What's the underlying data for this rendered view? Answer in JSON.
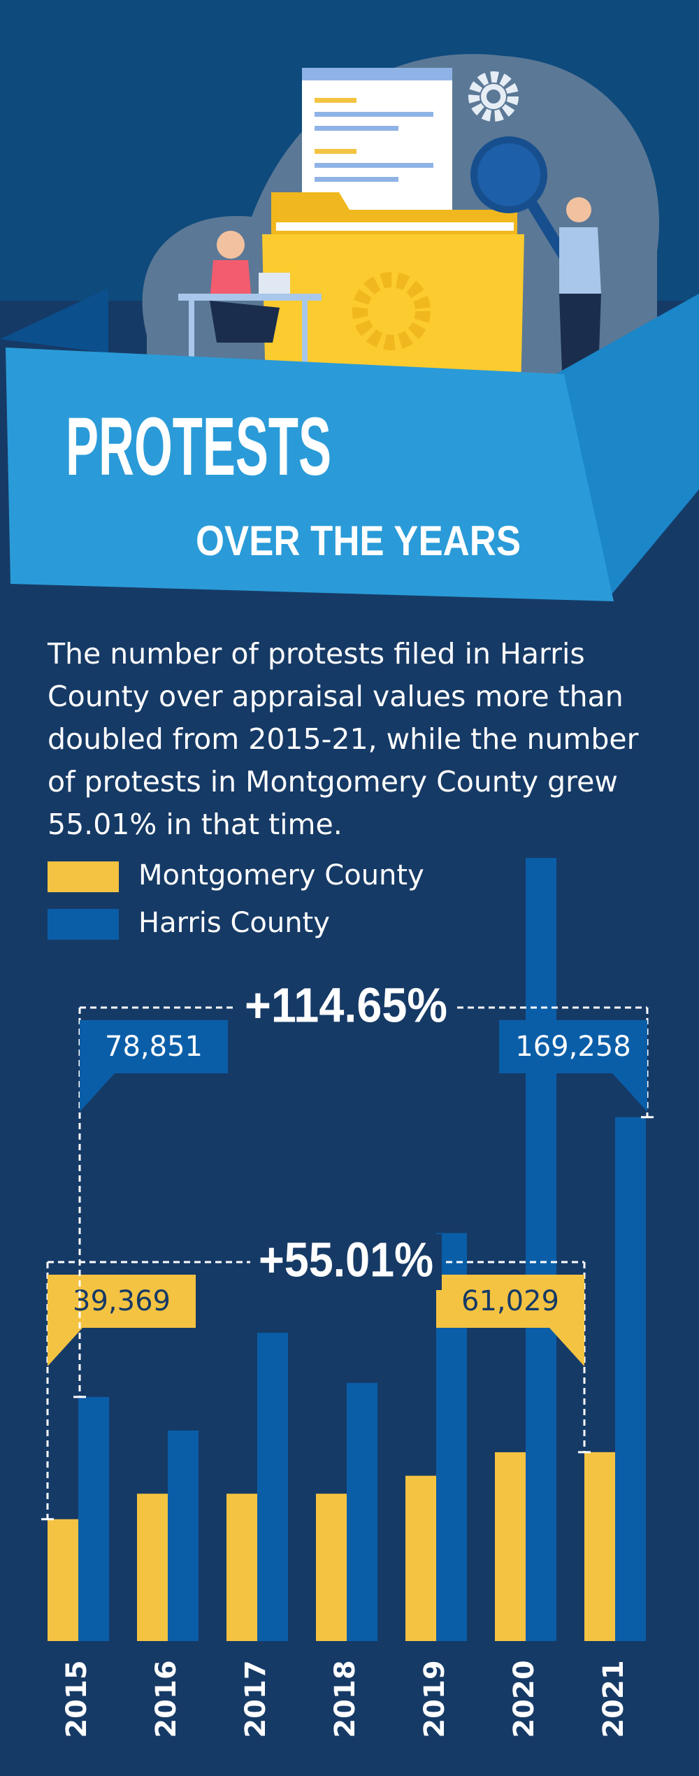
{
  "chart_data": {
    "type": "bar",
    "title": "PROTESTS",
    "subtitle": "OVER THE YEARS",
    "description": "The number of protests filed in Harris County over appraisal values more than doubled from 2015-21, while the number of protests in Montgomery County grew 55.01% in that time.",
    "categories": [
      "2015",
      "2016",
      "2017",
      "2018",
      "2019",
      "2020",
      "2021"
    ],
    "series": [
      {
        "name": "Montgomery County",
        "color": "#f5c342",
        "values": [
          39369,
          47600,
          47600,
          47600,
          53400,
          61000,
          61029
        ],
        "value_labels": [
          "39,369",
          null,
          null,
          null,
          null,
          null,
          "61,029"
        ]
      },
      {
        "name": "Harris County",
        "color": "#0a5ea8",
        "values": [
          78851,
          68000,
          99600,
          83400,
          131800,
          253000,
          169258
        ],
        "value_labels": [
          "78,851",
          null,
          null,
          null,
          null,
          null,
          "169,258"
        ]
      }
    ],
    "annotations": [
      {
        "text": "+55.01%"
      },
      {
        "text": "+114.65%"
      }
    ]
  }
}
